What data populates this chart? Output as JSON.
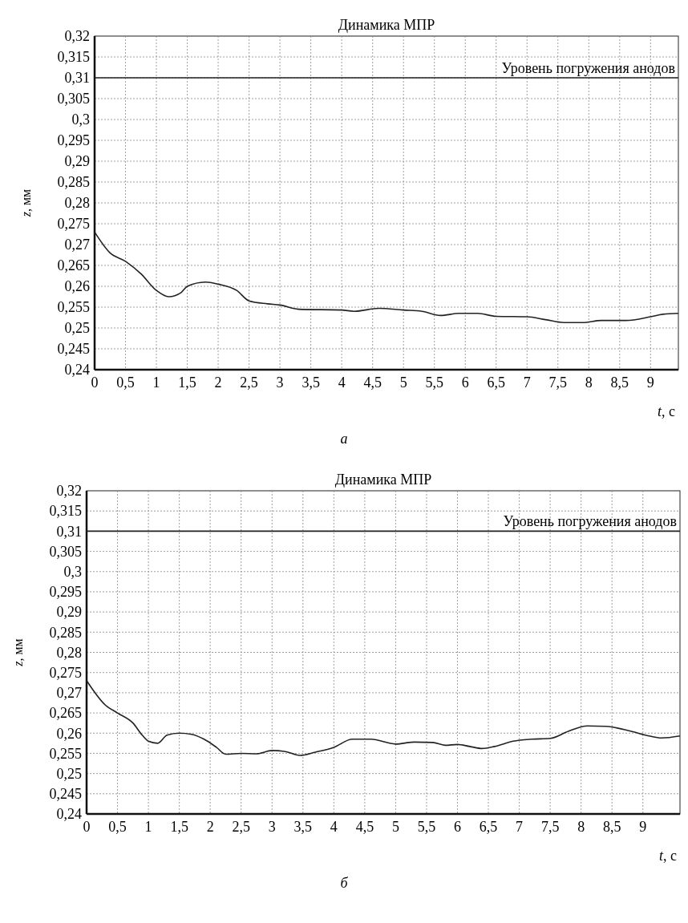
{
  "chart_data": [
    {
      "type": "line",
      "title": "Динамика МПР",
      "xlabel": "t, с",
      "ylabel": "z, мм",
      "annotations": [
        "а"
      ],
      "grid": true,
      "marker": "none",
      "line_style": "solid",
      "xlim": [
        0,
        9.45
      ],
      "xticks": [
        0,
        {
          "value": 0.5,
          "label": "0,5"
        },
        1,
        {
          "value": 1.5,
          "label": "1,5"
        },
        2,
        {
          "value": 2.5,
          "label": "2,5"
        },
        3,
        {
          "value": 3.5,
          "label": "3,5"
        },
        4,
        {
          "value": 4.5,
          "label": "4,5"
        },
        5,
        {
          "value": 5.5,
          "label": "5,5"
        },
        6,
        {
          "value": 6.5,
          "label": "6,5"
        },
        7,
        {
          "value": 7.5,
          "label": "7,5"
        },
        8,
        {
          "value": 8.5,
          "label": "8,5"
        },
        9
      ],
      "ylim": [
        0.24,
        0.32
      ],
      "yticks": [
        {
          "value": 0.24,
          "label": "0,24"
        },
        {
          "value": 0.245,
          "label": "0,245"
        },
        {
          "value": 0.25,
          "label": "0,25"
        },
        {
          "value": 0.255,
          "label": "0,255"
        },
        {
          "value": 0.26,
          "label": "0,26"
        },
        {
          "value": 0.265,
          "label": "0,265"
        },
        {
          "value": 0.27,
          "label": "0,27"
        },
        {
          "value": 0.275,
          "label": "0,275"
        },
        {
          "value": 0.28,
          "label": "0,28"
        },
        {
          "value": 0.285,
          "label": "0,285"
        },
        {
          "value": 0.29,
          "label": "0,29"
        },
        {
          "value": 0.295,
          "label": "0,295"
        },
        {
          "value": 0.3,
          "label": "0,3"
        },
        {
          "value": 0.305,
          "label": "0,305"
        },
        {
          "value": 0.31,
          "label": "0,31"
        },
        {
          "value": 0.315,
          "label": "0,315"
        },
        {
          "value": 0.32,
          "label": "0,32"
        }
      ],
      "ref_lines": [
        {
          "axis": "y",
          "value": 0.31,
          "label": "Уровень погружения анодов",
          "color": "#222222"
        }
      ],
      "series": [
        {
          "color": "#222222",
          "x": [
            0,
            0.25,
            0.5,
            0.75,
            1,
            1.2,
            1.4,
            1.5,
            1.8,
            2,
            2.3,
            2.5,
            2.8,
            3,
            3.3,
            4,
            4.2,
            4.6,
            5,
            5.3,
            5.6,
            5.9,
            6.2,
            6.5,
            7,
            7.3,
            7.6,
            7.9,
            8.2,
            8.6,
            9,
            9.2,
            9.45
          ],
          "values": [
            0.273,
            0.268,
            0.266,
            0.263,
            0.259,
            0.2575,
            0.2585,
            0.26,
            0.261,
            0.2605,
            0.259,
            0.2565,
            0.2558,
            0.2555,
            0.2545,
            0.2543,
            0.254,
            0.2547,
            0.2543,
            0.254,
            0.253,
            0.2535,
            0.2535,
            0.2528,
            0.2527,
            0.252,
            0.2513,
            0.2513,
            0.2518,
            0.2518,
            0.2527,
            0.2533,
            0.2535
          ]
        }
      ]
    },
    {
      "type": "line",
      "title": "Динамика МПР",
      "xlabel": "t, с",
      "ylabel": "z, мм",
      "annotations": [
        "б"
      ],
      "grid": true,
      "marker": "none",
      "line_style": "solid",
      "xlim": [
        0,
        9.6
      ],
      "xticks": [
        0,
        {
          "value": 0.5,
          "label": "0,5"
        },
        1,
        {
          "value": 1.5,
          "label": "1,5"
        },
        2,
        {
          "value": 2.5,
          "label": "2,5"
        },
        3,
        {
          "value": 3.5,
          "label": "3,5"
        },
        4,
        {
          "value": 4.5,
          "label": "4,5"
        },
        5,
        {
          "value": 5.5,
          "label": "5,5"
        },
        6,
        {
          "value": 6.5,
          "label": "6,5"
        },
        7,
        {
          "value": 7.5,
          "label": "7,5"
        },
        8,
        {
          "value": 8.5,
          "label": "8,5"
        },
        9
      ],
      "ylim": [
        0.24,
        0.32
      ],
      "yticks": [
        {
          "value": 0.24,
          "label": "0,24"
        },
        {
          "value": 0.245,
          "label": "0,245"
        },
        {
          "value": 0.25,
          "label": "0,25"
        },
        {
          "value": 0.255,
          "label": "0,255"
        },
        {
          "value": 0.26,
          "label": "0,26"
        },
        {
          "value": 0.265,
          "label": "0,265"
        },
        {
          "value": 0.27,
          "label": "0,27"
        },
        {
          "value": 0.275,
          "label": "0,275"
        },
        {
          "value": 0.28,
          "label": "0,28"
        },
        {
          "value": 0.285,
          "label": "0,285"
        },
        {
          "value": 0.29,
          "label": "0,29"
        },
        {
          "value": 0.295,
          "label": "0,295"
        },
        {
          "value": 0.3,
          "label": "0,3"
        },
        {
          "value": 0.305,
          "label": "0,305"
        },
        {
          "value": 0.31,
          "label": "0,31"
        },
        {
          "value": 0.315,
          "label": "0,315"
        },
        {
          "value": 0.32,
          "label": "0,32"
        }
      ],
      "ref_lines": [
        {
          "axis": "y",
          "value": 0.31,
          "label": "Уровень погружения анодов",
          "color": "#222222"
        }
      ],
      "series": [
        {
          "color": "#222222",
          "x": [
            0,
            0.3,
            0.5,
            0.75,
            0.9,
            1,
            1.15,
            1.3,
            1.5,
            1.7,
            1.9,
            2.1,
            2.25,
            2.5,
            2.75,
            3,
            3.2,
            3.45,
            3.7,
            4,
            4.3,
            4.6,
            5,
            5.3,
            5.6,
            5.8,
            6,
            6.2,
            6.4,
            6.6,
            6.9,
            7.2,
            7.5,
            7.8,
            8.1,
            8.4,
            8.8,
            9.1,
            9.3,
            9.6
          ],
          "values": [
            0.273,
            0.267,
            0.265,
            0.2625,
            0.2595,
            0.258,
            0.2575,
            0.2595,
            0.26,
            0.2597,
            0.2585,
            0.2565,
            0.2548,
            0.255,
            0.2549,
            0.2557,
            0.2555,
            0.2545,
            0.2553,
            0.2565,
            0.2585,
            0.2585,
            0.2573,
            0.2578,
            0.2577,
            0.257,
            0.2572,
            0.2567,
            0.2562,
            0.2567,
            0.258,
            0.2585,
            0.2587,
            0.2605,
            0.2618,
            0.2617,
            0.2605,
            0.2593,
            0.2588,
            0.2593
          ]
        }
      ]
    }
  ]
}
